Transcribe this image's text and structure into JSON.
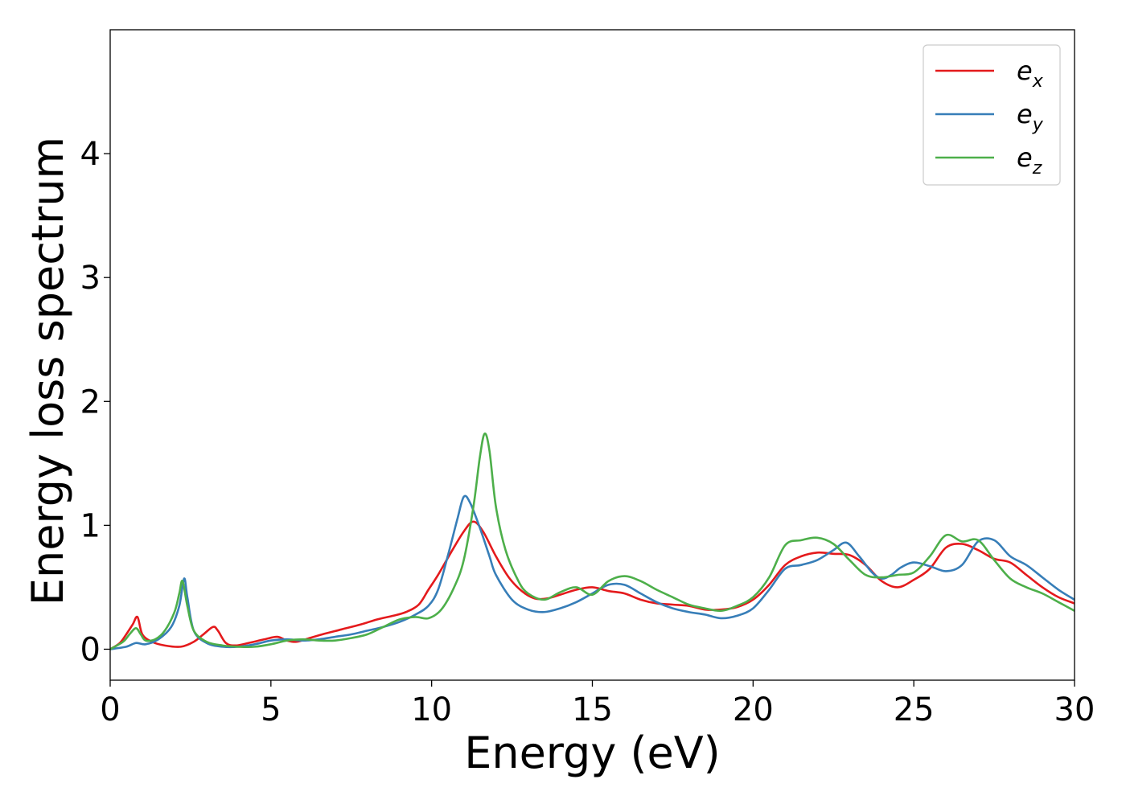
{
  "chart_data": {
    "type": "line",
    "title": "",
    "xlabel": "Energy (eV)",
    "ylabel": "Energy loss spectrum",
    "xlim": [
      0,
      30
    ],
    "ylim": [
      -0.25,
      5.0
    ],
    "xticks": [
      0,
      5,
      10,
      15,
      20,
      25,
      30
    ],
    "yticks": [
      0,
      1,
      2,
      3,
      4
    ],
    "grid": false,
    "legend_position": "top-right",
    "series": [
      {
        "name": "e_x",
        "label_base": "e",
        "label_sub": "x",
        "color": "#e41a1c",
        "x": [
          0,
          0.3,
          0.5,
          0.7,
          0.85,
          1.0,
          1.3,
          1.7,
          2.2,
          2.6,
          2.9,
          3.2,
          3.35,
          3.6,
          3.9,
          4.3,
          4.8,
          5.2,
          5.5,
          5.8,
          6.2,
          6.6,
          7.2,
          7.8,
          8.3,
          8.8,
          9.2,
          9.6,
          9.9,
          10.2,
          10.6,
          11.0,
          11.3,
          11.6,
          12.0,
          12.4,
          12.8,
          13.2,
          13.6,
          14.0,
          14.5,
          15.0,
          15.5,
          16.0,
          16.5,
          17.0,
          17.5,
          18.0,
          18.5,
          19.0,
          19.5,
          20.0,
          20.5,
          21.0,
          21.5,
          22.0,
          22.5,
          23.0,
          23.5,
          24.0,
          24.5,
          25.0,
          25.5,
          26.0,
          26.5,
          27.0,
          27.5,
          28.0,
          28.5,
          29.0,
          29.5,
          30.0
        ],
        "y": [
          0.0,
          0.05,
          0.12,
          0.2,
          0.26,
          0.12,
          0.06,
          0.03,
          0.02,
          0.06,
          0.12,
          0.18,
          0.15,
          0.05,
          0.03,
          0.05,
          0.08,
          0.1,
          0.07,
          0.06,
          0.09,
          0.12,
          0.16,
          0.2,
          0.24,
          0.27,
          0.3,
          0.36,
          0.48,
          0.6,
          0.78,
          0.95,
          1.03,
          0.95,
          0.75,
          0.58,
          0.47,
          0.41,
          0.41,
          0.44,
          0.48,
          0.5,
          0.47,
          0.45,
          0.4,
          0.37,
          0.36,
          0.35,
          0.32,
          0.32,
          0.34,
          0.4,
          0.52,
          0.68,
          0.75,
          0.78,
          0.77,
          0.76,
          0.68,
          0.55,
          0.5,
          0.56,
          0.65,
          0.82,
          0.85,
          0.8,
          0.73,
          0.7,
          0.6,
          0.5,
          0.42,
          0.37
        ]
      },
      {
        "name": "e_y",
        "label_base": "e",
        "label_sub": "y",
        "color": "#377eb8",
        "x": [
          0,
          0.5,
          0.8,
          1.1,
          1.5,
          1.9,
          2.15,
          2.3,
          2.4,
          2.6,
          3.0,
          3.5,
          4.0,
          4.5,
          5.0,
          5.5,
          6.0,
          6.5,
          7.0,
          7.5,
          8.0,
          8.5,
          9.0,
          9.5,
          9.9,
          10.2,
          10.5,
          10.8,
          11.0,
          11.2,
          11.5,
          11.8,
          12.0,
          12.5,
          13.0,
          13.5,
          14.0,
          14.5,
          15.0,
          15.5,
          16.0,
          16.5,
          17.0,
          17.5,
          18.0,
          18.5,
          19.0,
          19.5,
          20.0,
          20.5,
          21.0,
          21.5,
          22.0,
          22.5,
          22.9,
          23.3,
          23.7,
          24.0,
          24.3,
          24.6,
          25.0,
          25.5,
          26.0,
          26.5,
          27.0,
          27.5,
          28.0,
          28.5,
          29.0,
          29.5,
          30.0
        ],
        "y": [
          0.0,
          0.02,
          0.05,
          0.04,
          0.08,
          0.18,
          0.35,
          0.57,
          0.42,
          0.15,
          0.05,
          0.02,
          0.02,
          0.04,
          0.07,
          0.08,
          0.07,
          0.08,
          0.1,
          0.12,
          0.15,
          0.18,
          0.22,
          0.28,
          0.35,
          0.48,
          0.75,
          1.05,
          1.23,
          1.18,
          0.98,
          0.75,
          0.6,
          0.4,
          0.32,
          0.3,
          0.33,
          0.38,
          0.45,
          0.52,
          0.52,
          0.45,
          0.38,
          0.33,
          0.3,
          0.28,
          0.25,
          0.27,
          0.33,
          0.48,
          0.65,
          0.68,
          0.72,
          0.8,
          0.86,
          0.75,
          0.62,
          0.57,
          0.6,
          0.66,
          0.7,
          0.67,
          0.63,
          0.68,
          0.87,
          0.88,
          0.75,
          0.68,
          0.58,
          0.48,
          0.4
        ]
      },
      {
        "name": "e_z",
        "label_base": "e",
        "label_sub": "z",
        "color": "#4daf4a",
        "x": [
          0,
          0.4,
          0.6,
          0.8,
          0.95,
          1.1,
          1.4,
          1.7,
          2.0,
          2.15,
          2.25,
          2.4,
          2.6,
          3.0,
          3.5,
          4.0,
          4.5,
          5.0,
          5.5,
          6.0,
          6.5,
          7.0,
          7.5,
          8.0,
          8.5,
          9.0,
          9.5,
          9.9,
          10.3,
          10.7,
          11.0,
          11.3,
          11.5,
          11.65,
          11.8,
          12.0,
          12.3,
          12.7,
          13.0,
          13.5,
          14.0,
          14.5,
          15.0,
          15.5,
          16.0,
          16.5,
          17.0,
          17.5,
          18.0,
          18.5,
          19.0,
          19.5,
          20.0,
          20.5,
          21.0,
          21.5,
          22.0,
          22.5,
          23.0,
          23.5,
          24.0,
          24.5,
          25.0,
          25.5,
          26.0,
          26.5,
          27.0,
          27.5,
          28.0,
          28.5,
          29.0,
          29.5,
          30.0
        ],
        "y": [
          0.0,
          0.06,
          0.12,
          0.17,
          0.12,
          0.07,
          0.08,
          0.15,
          0.3,
          0.45,
          0.55,
          0.35,
          0.15,
          0.06,
          0.03,
          0.02,
          0.02,
          0.04,
          0.07,
          0.08,
          0.07,
          0.07,
          0.09,
          0.12,
          0.18,
          0.24,
          0.26,
          0.25,
          0.32,
          0.5,
          0.72,
          1.15,
          1.55,
          1.74,
          1.6,
          1.15,
          0.8,
          0.55,
          0.45,
          0.4,
          0.46,
          0.5,
          0.44,
          0.55,
          0.59,
          0.55,
          0.48,
          0.42,
          0.36,
          0.33,
          0.31,
          0.35,
          0.42,
          0.58,
          0.84,
          0.88,
          0.9,
          0.85,
          0.72,
          0.6,
          0.58,
          0.6,
          0.62,
          0.75,
          0.92,
          0.87,
          0.88,
          0.72,
          0.57,
          0.5,
          0.45,
          0.38,
          0.31
        ]
      }
    ]
  }
}
